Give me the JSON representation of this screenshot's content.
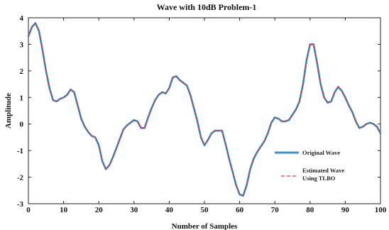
{
  "chart_data": {
    "type": "line",
    "title": "Wave with 10dB Problem-1",
    "xlabel": "Number of Samples",
    "ylabel": "Amplitude",
    "xlim": [
      0,
      100
    ],
    "ylim": [
      -3,
      4
    ],
    "x_ticks": [
      "0",
      "10",
      "20",
      "30",
      "40",
      "50",
      "60",
      "70",
      "80",
      "90",
      "100"
    ],
    "y_ticks": [
      "-3",
      "-2",
      "-1",
      "0",
      "1",
      "2",
      "3",
      "4"
    ],
    "grid": false,
    "legend_position": "bottom-right",
    "x": [
      0,
      1,
      2,
      3,
      4,
      5,
      6,
      7,
      8,
      9,
      10,
      11,
      12,
      13,
      14,
      15,
      16,
      17,
      18,
      19,
      20,
      21,
      22,
      23,
      24,
      25,
      26,
      27,
      28,
      29,
      30,
      31,
      32,
      33,
      34,
      35,
      36,
      37,
      38,
      39,
      40,
      41,
      42,
      43,
      44,
      45,
      46,
      47,
      48,
      49,
      50,
      51,
      52,
      53,
      54,
      55,
      56,
      57,
      58,
      59,
      60,
      61,
      62,
      63,
      64,
      65,
      66,
      67,
      68,
      69,
      70,
      71,
      72,
      73,
      74,
      75,
      76,
      77,
      78,
      79,
      80,
      81,
      82,
      83,
      84,
      85,
      86,
      87,
      88,
      89,
      90,
      91,
      92,
      93,
      94,
      95,
      96,
      97,
      98,
      99,
      100
    ],
    "series": [
      {
        "name": "Original Wave",
        "color": "#3a8fc9",
        "style": "solid",
        "values": [
          3.3,
          3.65,
          3.8,
          3.5,
          2.8,
          2.0,
          1.35,
          0.9,
          0.85,
          0.95,
          1.0,
          1.1,
          1.3,
          1.2,
          0.7,
          0.2,
          -0.1,
          -0.3,
          -0.45,
          -0.5,
          -0.8,
          -1.4,
          -1.7,
          -1.55,
          -1.25,
          -0.9,
          -0.55,
          -0.2,
          -0.05,
          0.05,
          0.15,
          0.1,
          -0.15,
          -0.15,
          0.25,
          0.6,
          0.9,
          1.1,
          1.2,
          1.15,
          1.35,
          1.75,
          1.8,
          1.65,
          1.55,
          1.45,
          1.1,
          0.6,
          0.1,
          -0.5,
          -0.8,
          -0.6,
          -0.35,
          -0.25,
          -0.25,
          -0.25,
          -0.75,
          -1.3,
          -1.8,
          -2.3,
          -2.65,
          -2.7,
          -2.3,
          -1.7,
          -1.3,
          -1.05,
          -0.85,
          -0.65,
          -0.35,
          0.05,
          0.25,
          0.2,
          0.1,
          0.1,
          0.15,
          0.35,
          0.55,
          0.85,
          1.5,
          2.4,
          3.0,
          3.0,
          2.3,
          1.5,
          1.0,
          0.8,
          0.85,
          1.2,
          1.4,
          1.25,
          1.0,
          0.7,
          0.45,
          0.1,
          -0.15,
          -0.1,
          0.0,
          0.05,
          0.0,
          -0.1,
          -0.35
        ]
      },
      {
        "name": "Estimated Wave Using TLBO",
        "color": "#c04040",
        "style": "dashed",
        "values": [
          3.3,
          3.65,
          3.8,
          3.5,
          2.8,
          2.0,
          1.35,
          0.9,
          0.85,
          0.95,
          1.0,
          1.1,
          1.3,
          1.2,
          0.7,
          0.2,
          -0.1,
          -0.3,
          -0.45,
          -0.5,
          -0.8,
          -1.4,
          -1.7,
          -1.55,
          -1.25,
          -0.9,
          -0.55,
          -0.2,
          -0.05,
          0.05,
          0.15,
          0.1,
          -0.15,
          -0.15,
          0.25,
          0.6,
          0.9,
          1.1,
          1.2,
          1.15,
          1.35,
          1.75,
          1.8,
          1.65,
          1.55,
          1.45,
          1.1,
          0.6,
          0.1,
          -0.5,
          -0.8,
          -0.6,
          -0.35,
          -0.25,
          -0.25,
          -0.25,
          -0.75,
          -1.3,
          -1.8,
          -2.3,
          -2.65,
          -2.7,
          -2.3,
          -1.7,
          -1.3,
          -1.05,
          -0.85,
          -0.65,
          -0.35,
          0.05,
          0.25,
          0.2,
          0.1,
          0.1,
          0.15,
          0.35,
          0.55,
          0.85,
          1.5,
          2.4,
          3.0,
          3.0,
          2.3,
          1.5,
          1.0,
          0.8,
          0.85,
          1.2,
          1.4,
          1.25,
          1.0,
          0.7,
          0.45,
          0.1,
          -0.15,
          -0.1,
          0.0,
          0.05,
          0.0,
          -0.1,
          -0.35
        ]
      }
    ],
    "legend": [
      {
        "lines": [
          "Original Wave"
        ]
      },
      {
        "lines": [
          "Estimated Wave",
          "Using TLBO"
        ]
      }
    ]
  }
}
